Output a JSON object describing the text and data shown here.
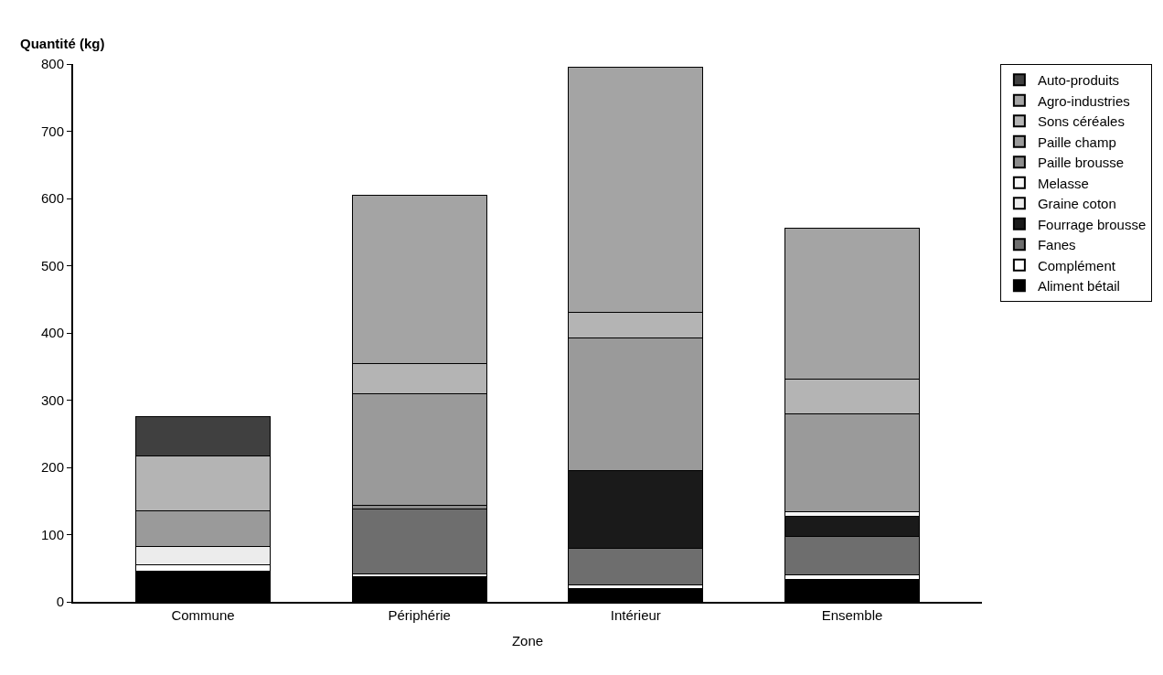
{
  "chart_data": {
    "type": "bar",
    "stacked": true,
    "xlabel": "Zone",
    "ylabel": "Quantité (kg)",
    "categories": [
      "Commune",
      "Périphérie",
      "Intérieur",
      "Ensemble"
    ],
    "ylim": [
      0,
      800
    ],
    "yticks": [
      0,
      100,
      200,
      300,
      400,
      500,
      600,
      700,
      800
    ],
    "grid": false,
    "legend": "right",
    "series": [
      {
        "name": "Aliment bétail",
        "color": "#000000",
        "values": [
          46,
          37,
          20,
          34
        ]
      },
      {
        "name": "Complément",
        "color": "#ffffff",
        "values": [
          9,
          4,
          5,
          6
        ]
      },
      {
        "name": "Fanes",
        "color": "#6e6e6e",
        "values": [
          null,
          97,
          55,
          57
        ]
      },
      {
        "name": "Fourrage brousse",
        "color": "#1a1a1a",
        "values": [
          null,
          null,
          115,
          30
        ]
      },
      {
        "name": "Graine coton",
        "color": "#ececec",
        "values": [
          28,
          null,
          null,
          null
        ]
      },
      {
        "name": "Melasse",
        "color": "#f6f6f6",
        "values": [
          null,
          null,
          null,
          7
        ]
      },
      {
        "name": "Paille brousse",
        "color": "#8c8c8c",
        "values": [
          null,
          6,
          null,
          null
        ]
      },
      {
        "name": "Paille champ",
        "color": "#9a9a9a",
        "values": [
          52,
          165,
          197,
          145
        ]
      },
      {
        "name": "Sons céréales",
        "color": "#b4b4b4",
        "values": [
          82,
          45,
          38,
          52
        ]
      },
      {
        "name": "Agro-industries",
        "color": "#a4a4a4",
        "values": [
          null,
          251,
          365,
          225
        ]
      },
      {
        "name": "Auto-produits",
        "color": "#404040",
        "values": [
          58,
          null,
          null,
          null
        ]
      }
    ]
  }
}
